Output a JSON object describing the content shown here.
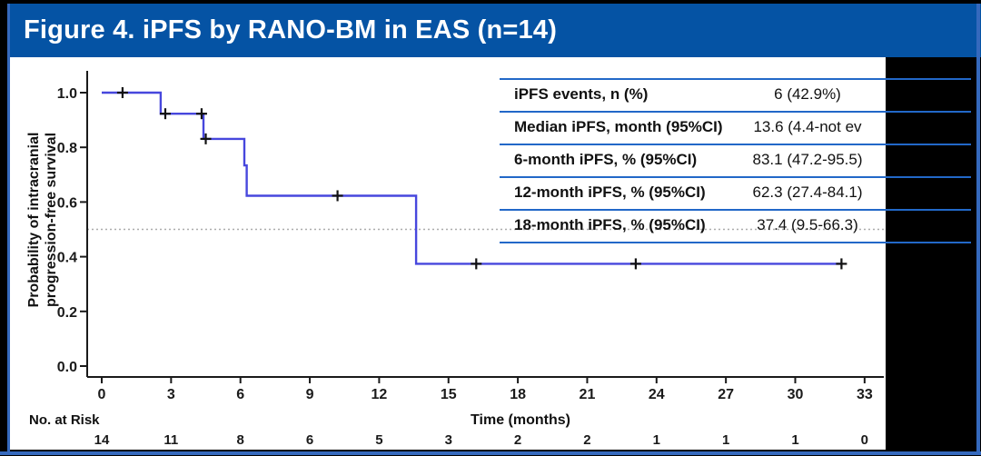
{
  "header": {
    "title": "Figure 4. iPFS by RANO-BM in EAS (n=14)"
  },
  "stats_table": {
    "rows": [
      {
        "label": "iPFS events, n (%)",
        "value": "6 (42.9%)"
      },
      {
        "label": "Median iPFS, month (95%CI)",
        "value": "13.6 (4.4-not ev"
      },
      {
        "label": "6-month iPFS, % (95%CI)",
        "value": "83.1 (47.2-95.5)"
      },
      {
        "label": "12-month iPFS, % (95%CI)",
        "value": "62.3 (27.4-84.1)"
      },
      {
        "label": "18-month iPFS, % (95%CI)",
        "value": "37.4 (9.5-66.3)"
      }
    ]
  },
  "risk_table": {
    "label": "No. at Risk",
    "values": [
      "14",
      "11",
      "8",
      "6",
      "5",
      "3",
      "2",
      "2",
      "1",
      "1",
      "1",
      "0"
    ]
  },
  "chart_data": {
    "type": "line",
    "subtype": "kaplan-meier-step",
    "title": "",
    "xlabel": "Time (months)",
    "ylabel": "Probability of intracranial progression-free survival",
    "ylabel_lines": [
      "Probability of intracranial",
      "progression-free survival"
    ],
    "xlim": [
      0,
      33
    ],
    "ylim": [
      0.0,
      1.0
    ],
    "xticks": [
      0,
      3,
      6,
      9,
      12,
      15,
      18,
      21,
      24,
      27,
      30,
      33
    ],
    "ytick_labels": [
      "1.0",
      "0.8",
      "0.6",
      "0.4",
      "0.2",
      "0.0"
    ],
    "ytick_values": [
      1.0,
      0.8,
      0.6,
      0.4,
      0.2,
      0.0
    ],
    "reference_line_y": 0.5,
    "grid": false,
    "legend": "none",
    "series": [
      {
        "name": "EAS (n=14)",
        "steps": [
          [
            0,
            1.0
          ],
          [
            2.55,
            1.0
          ],
          [
            2.55,
            0.923
          ],
          [
            4.4,
            0.923
          ],
          [
            4.4,
            0.831
          ],
          [
            6.17,
            0.831
          ],
          [
            6.17,
            0.734
          ],
          [
            6.27,
            0.734
          ],
          [
            6.27,
            0.623
          ],
          [
            13.6,
            0.623
          ],
          [
            13.6,
            0.374
          ],
          [
            32.0,
            0.374
          ]
        ],
        "censor_marks": [
          [
            0.9,
            1.0
          ],
          [
            2.75,
            0.923
          ],
          [
            4.32,
            0.923
          ],
          [
            4.5,
            0.831
          ],
          [
            10.2,
            0.623
          ],
          [
            16.2,
            0.374
          ],
          [
            23.1,
            0.374
          ],
          [
            32.0,
            0.374
          ]
        ]
      }
    ]
  },
  "colors": {
    "header_blue": "#0553a4",
    "curve_blue": "#4747dd",
    "table_line_blue": "#2268c8",
    "border_blue": "#3569bd",
    "reference_dotted": "#ababab",
    "axis_black": "#1a1a1a"
  }
}
